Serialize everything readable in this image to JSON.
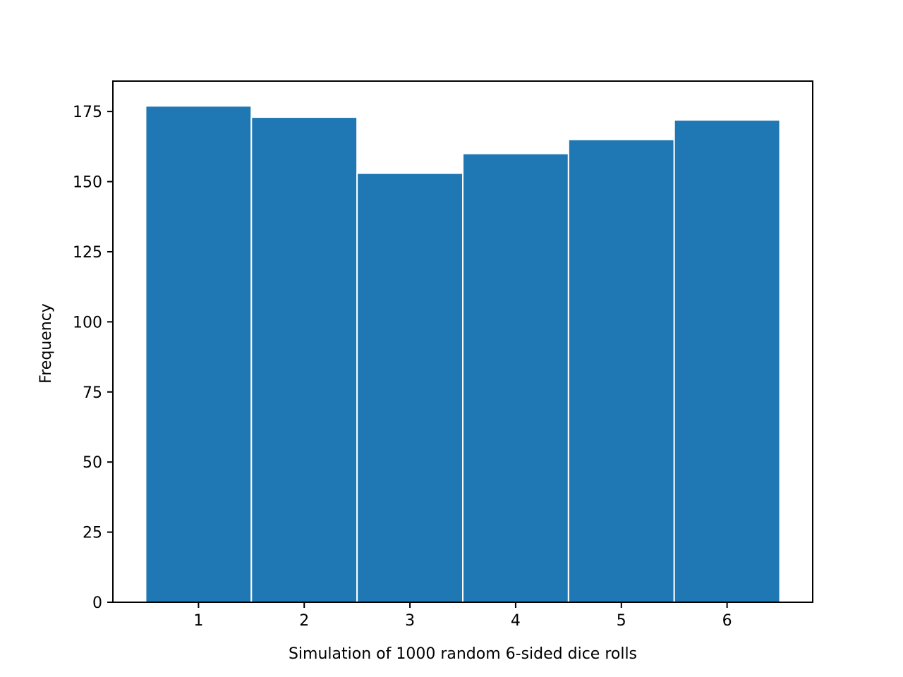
{
  "chart_data": {
    "type": "bar",
    "categories": [
      "1",
      "2",
      "3",
      "4",
      "5",
      "6"
    ],
    "values": [
      177,
      173,
      153,
      160,
      165,
      172
    ],
    "title": "",
    "xlabel": "Simulation of 1000 random 6-sided dice rolls",
    "ylabel": "Frequency",
    "xlim": [
      0.19,
      6.81
    ],
    "ylim": [
      0,
      185.85
    ],
    "yticks": [
      0,
      25,
      50,
      75,
      100,
      125,
      150,
      175
    ],
    "grid": false,
    "legend": "none",
    "bar_color": "#1f77b4",
    "edge_color": "#ffffff"
  }
}
